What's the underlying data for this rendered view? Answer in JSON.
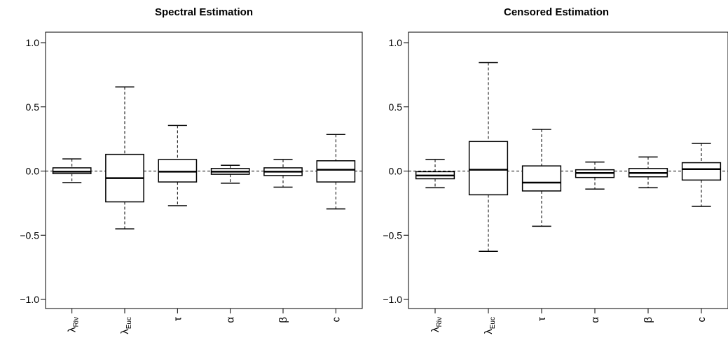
{
  "chart_data": [
    {
      "type": "boxplot",
      "title": "Spectral Estimation",
      "ylim": [
        -1.0,
        1.0
      ],
      "yticks": [
        {
          "value": -1.0,
          "label": "−1.0"
        },
        {
          "value": -0.5,
          "label": "−0.5"
        },
        {
          "value": 0.0,
          "label": "0.0"
        },
        {
          "value": 0.5,
          "label": "0.5"
        },
        {
          "value": 1.0,
          "label": "1.0"
        }
      ],
      "reference_line": 0.0,
      "categories": [
        {
          "base": "λ",
          "sub": "Riv"
        },
        {
          "base": "λ",
          "sub": "Euc"
        },
        {
          "base": "τ",
          "sub": ""
        },
        {
          "base": "α",
          "sub": ""
        },
        {
          "base": "β",
          "sub": ""
        },
        {
          "base": "c",
          "sub": ""
        }
      ],
      "boxes": [
        {
          "whisker_low": -0.09,
          "q1": -0.02,
          "median": -0.005,
          "q3": 0.025,
          "whisker_high": 0.095
        },
        {
          "whisker_low": -0.45,
          "q1": -0.24,
          "median": -0.055,
          "q3": 0.13,
          "whisker_high": 0.655
        },
        {
          "whisker_low": -0.27,
          "q1": -0.085,
          "median": -0.005,
          "q3": 0.09,
          "whisker_high": 0.355
        },
        {
          "whisker_low": -0.095,
          "q1": -0.025,
          "median": -0.005,
          "q3": 0.02,
          "whisker_high": 0.045
        },
        {
          "whisker_low": -0.125,
          "q1": -0.035,
          "median": -0.005,
          "q3": 0.025,
          "whisker_high": 0.09
        },
        {
          "whisker_low": -0.295,
          "q1": -0.085,
          "median": 0.01,
          "q3": 0.08,
          "whisker_high": 0.285
        }
      ]
    },
    {
      "type": "boxplot",
      "title": "Censored Estimation",
      "ylim": [
        -1.0,
        1.0
      ],
      "yticks": [
        {
          "value": -1.0,
          "label": "−1.0"
        },
        {
          "value": -0.5,
          "label": "−0.5"
        },
        {
          "value": 0.0,
          "label": "0.0"
        },
        {
          "value": 0.5,
          "label": "0.5"
        },
        {
          "value": 1.0,
          "label": "1.0"
        }
      ],
      "reference_line": 0.0,
      "categories": [
        {
          "base": "λ",
          "sub": "Riv"
        },
        {
          "base": "λ",
          "sub": "Euc"
        },
        {
          "base": "τ",
          "sub": ""
        },
        {
          "base": "α",
          "sub": ""
        },
        {
          "base": "β",
          "sub": ""
        },
        {
          "base": "c",
          "sub": ""
        }
      ],
      "boxes": [
        {
          "whisker_low": -0.13,
          "q1": -0.06,
          "median": -0.035,
          "q3": -0.005,
          "whisker_high": 0.09
        },
        {
          "whisker_low": -0.625,
          "q1": -0.185,
          "median": 0.01,
          "q3": 0.23,
          "whisker_high": 0.845
        },
        {
          "whisker_low": -0.43,
          "q1": -0.155,
          "median": -0.09,
          "q3": 0.04,
          "whisker_high": 0.325
        },
        {
          "whisker_low": -0.14,
          "q1": -0.05,
          "median": -0.015,
          "q3": 0.01,
          "whisker_high": 0.07
        },
        {
          "whisker_low": -0.13,
          "q1": -0.045,
          "median": -0.015,
          "q3": 0.02,
          "whisker_high": 0.11
        },
        {
          "whisker_low": -0.275,
          "q1": -0.07,
          "median": 0.015,
          "q3": 0.065,
          "whisker_high": 0.215
        }
      ]
    }
  ]
}
